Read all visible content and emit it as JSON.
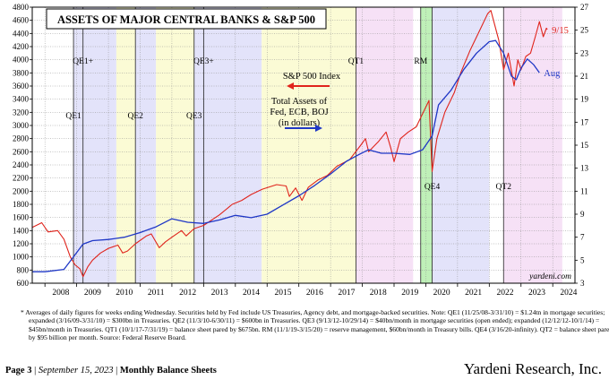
{
  "chart_data": {
    "type": "line",
    "title": "ASSETS OF MAJOR CENTRAL BANKS & S&P 500",
    "left_axis": {
      "min": 600,
      "max": 4800,
      "ticks": [
        600,
        800,
        1000,
        1200,
        1400,
        1600,
        1800,
        2000,
        2200,
        2400,
        2600,
        2800,
        3000,
        3200,
        3400,
        3600,
        3800,
        4000,
        4200,
        4400,
        4600,
        4800
      ]
    },
    "right_axis": {
      "min": 3,
      "max": 27,
      "ticks": [
        3,
        5,
        7,
        9,
        11,
        13,
        15,
        17,
        19,
        21,
        23,
        25,
        27
      ]
    },
    "x_axis": {
      "min": 2007.6,
      "max": 2024.7,
      "tick_labels": [
        "2008",
        "2009",
        "2010",
        "2011",
        "2012",
        "2013",
        "2014",
        "2015",
        "2016",
        "2017",
        "2018",
        "2019",
        "2020",
        "2021",
        "2022",
        "2023",
        "2024"
      ]
    },
    "grid": true,
    "shaded_periods": [
      {
        "start": 2008.9,
        "end": 2010.25,
        "color": "#e3e3fa"
      },
      {
        "start": 2010.25,
        "end": 2010.85,
        "color": "#fbfbd5"
      },
      {
        "start": 2010.85,
        "end": 2011.5,
        "color": "#e3e3fa"
      },
      {
        "start": 2011.5,
        "end": 2012.7,
        "color": "#fbfbd5"
      },
      {
        "start": 2012.7,
        "end": 2014.83,
        "color": "#e3e3fa"
      },
      {
        "start": 2014.83,
        "end": 2017.8,
        "color": "#fbfbd5"
      },
      {
        "start": 2017.8,
        "end": 2019.6,
        "color": "#f6e1f6"
      },
      {
        "start": 2019.84,
        "end": 2020.2,
        "color": "#bff0b8"
      },
      {
        "start": 2020.2,
        "end": 2022.0,
        "color": "#e3e3fa"
      },
      {
        "start": 2022.45,
        "end": 2024.3,
        "color": "#f6e1f6"
      }
    ],
    "event_lines": [
      {
        "label": "QE1",
        "x": 2008.9,
        "label_pos": "mid"
      },
      {
        "label": "QE1+",
        "x": 2009.2,
        "label_pos": "top"
      },
      {
        "label": "QE2",
        "x": 2010.85,
        "label_pos": "mid"
      },
      {
        "label": "QE3",
        "x": 2012.7,
        "label_pos": "mid"
      },
      {
        "label": "QE3+",
        "x": 2013.0,
        "label_pos": "top"
      },
      {
        "label": "QT1",
        "x": 2017.8,
        "label_pos": "top"
      },
      {
        "label": "RM",
        "x": 2019.84,
        "label_pos": "top"
      },
      {
        "label": "QE4",
        "x": 2020.2,
        "label_pos": "low"
      },
      {
        "label": "QT2",
        "x": 2022.45,
        "label_pos": "low"
      }
    ],
    "series": [
      {
        "name": "S&P 500 Index",
        "axis": "left",
        "color": "#e0241c",
        "end_label": "9/15",
        "points": [
          [
            2007.6,
            1450
          ],
          [
            2007.9,
            1520
          ],
          [
            2008.1,
            1380
          ],
          [
            2008.4,
            1400
          ],
          [
            2008.6,
            1270
          ],
          [
            2008.8,
            1000
          ],
          [
            2008.95,
            880
          ],
          [
            2009.1,
            820
          ],
          [
            2009.2,
            700
          ],
          [
            2009.35,
            850
          ],
          [
            2009.5,
            950
          ],
          [
            2009.75,
            1060
          ],
          [
            2010.0,
            1130
          ],
          [
            2010.3,
            1180
          ],
          [
            2010.45,
            1060
          ],
          [
            2010.6,
            1090
          ],
          [
            2010.85,
            1200
          ],
          [
            2011.2,
            1320
          ],
          [
            2011.35,
            1350
          ],
          [
            2011.6,
            1140
          ],
          [
            2011.8,
            1230
          ],
          [
            2012.0,
            1300
          ],
          [
            2012.3,
            1400
          ],
          [
            2012.45,
            1320
          ],
          [
            2012.7,
            1430
          ],
          [
            2013.0,
            1480
          ],
          [
            2013.5,
            1640
          ],
          [
            2013.9,
            1800
          ],
          [
            2014.2,
            1860
          ],
          [
            2014.5,
            1950
          ],
          [
            2014.85,
            2030
          ],
          [
            2015.3,
            2100
          ],
          [
            2015.6,
            2080
          ],
          [
            2015.7,
            1920
          ],
          [
            2015.9,
            2050
          ],
          [
            2016.1,
            1860
          ],
          [
            2016.3,
            2060
          ],
          [
            2016.6,
            2170
          ],
          [
            2016.9,
            2240
          ],
          [
            2017.2,
            2380
          ],
          [
            2017.6,
            2480
          ],
          [
            2017.95,
            2700
          ],
          [
            2018.1,
            2800
          ],
          [
            2018.2,
            2600
          ],
          [
            2018.5,
            2750
          ],
          [
            2018.75,
            2900
          ],
          [
            2018.9,
            2650
          ],
          [
            2019.0,
            2450
          ],
          [
            2019.2,
            2800
          ],
          [
            2019.45,
            2900
          ],
          [
            2019.7,
            2980
          ],
          [
            2019.95,
            3230
          ],
          [
            2020.1,
            3380
          ],
          [
            2020.2,
            2300
          ],
          [
            2020.35,
            2800
          ],
          [
            2020.6,
            3200
          ],
          [
            2020.9,
            3500
          ],
          [
            2021.1,
            3800
          ],
          [
            2021.4,
            4150
          ],
          [
            2021.7,
            4450
          ],
          [
            2021.95,
            4700
          ],
          [
            2022.05,
            4750
          ],
          [
            2022.3,
            4300
          ],
          [
            2022.45,
            3850
          ],
          [
            2022.6,
            4100
          ],
          [
            2022.78,
            3600
          ],
          [
            2022.9,
            4000
          ],
          [
            2023.0,
            3850
          ],
          [
            2023.15,
            4050
          ],
          [
            2023.3,
            4100
          ],
          [
            2023.45,
            4350
          ],
          [
            2023.58,
            4580
          ],
          [
            2023.7,
            4350
          ],
          [
            2023.8,
            4480
          ],
          [
            2023.83,
            4460
          ]
        ]
      },
      {
        "name": "Total Assets of Fed, ECB, BOJ (in dollars)",
        "axis": "right",
        "color": "#1f37c6",
        "end_label": "Aug",
        "points": [
          [
            2007.6,
            4.0
          ],
          [
            2008.0,
            4.0
          ],
          [
            2008.6,
            4.2
          ],
          [
            2008.9,
            5.3
          ],
          [
            2009.2,
            6.4
          ],
          [
            2009.5,
            6.7
          ],
          [
            2010.0,
            6.8
          ],
          [
            2010.5,
            7.0
          ],
          [
            2011.0,
            7.4
          ],
          [
            2011.5,
            7.9
          ],
          [
            2012.0,
            8.6
          ],
          [
            2012.5,
            8.3
          ],
          [
            2013.0,
            8.2
          ],
          [
            2013.5,
            8.5
          ],
          [
            2014.0,
            8.9
          ],
          [
            2014.5,
            8.7
          ],
          [
            2015.0,
            9.0
          ],
          [
            2015.5,
            9.8
          ],
          [
            2016.0,
            10.6
          ],
          [
            2016.5,
            11.5
          ],
          [
            2017.0,
            12.5
          ],
          [
            2017.5,
            13.6
          ],
          [
            2017.9,
            14.2
          ],
          [
            2018.2,
            14.6
          ],
          [
            2018.6,
            14.3
          ],
          [
            2019.0,
            14.3
          ],
          [
            2019.5,
            14.2
          ],
          [
            2019.9,
            14.6
          ],
          [
            2020.2,
            15.8
          ],
          [
            2020.4,
            18.5
          ],
          [
            2020.8,
            19.8
          ],
          [
            2021.2,
            21.6
          ],
          [
            2021.6,
            23.0
          ],
          [
            2022.0,
            24.0
          ],
          [
            2022.2,
            24.1
          ],
          [
            2022.45,
            23.0
          ],
          [
            2022.7,
            21.0
          ],
          [
            2022.85,
            20.7
          ],
          [
            2023.0,
            21.7
          ],
          [
            2023.2,
            22.5
          ],
          [
            2023.4,
            22.0
          ],
          [
            2023.58,
            21.3
          ]
        ]
      }
    ],
    "legend": [
      {
        "name": "S&P 500 Index",
        "color": "#e0241c"
      },
      {
        "name": "Total Assets of Fed, ECB, BOJ (in dollars)",
        "lines": [
          "Total Assets of",
          "Fed, ECB, BOJ",
          "(in dollars)"
        ],
        "color": "#1f37c6"
      }
    ],
    "source_mark": "yardeni.com"
  },
  "notes": "* Averages of daily figures for weeks ending Wednesday. Securities held by Fed include US Treasuries, Agency debt, and mortgage-backed securities. Note: QE1 (11/25/08-3/31/10) = $1.24tn in mortgage securities; expanded (3/16/09-3/31/10) = $300bn in Treasuries. QE2 (11/3/10-6/30/11) = $600bn in Treasuries. QE3 (9/13/12-10/29/14) = $40bn/month in mortgage securities (open ended); expanded (12/12/12-10/1/14) = $45bn/month in Treasuries. QT1 (10/1/17-7/31/19) = balance sheet pared by $675bn. RM (11/1/19-3/15/20) = reserve management, $60bn/month in Treasury bills. QE4 (3/16/20-infinity). QT2 = balance sheet pared by $95 billion per month. Source: Federal Reserve Board.",
  "footer": {
    "page": "Page 3",
    "date": "September 15, 2023",
    "section": "Monthly Balance Sheets",
    "company": "Yardeni Research, Inc."
  }
}
